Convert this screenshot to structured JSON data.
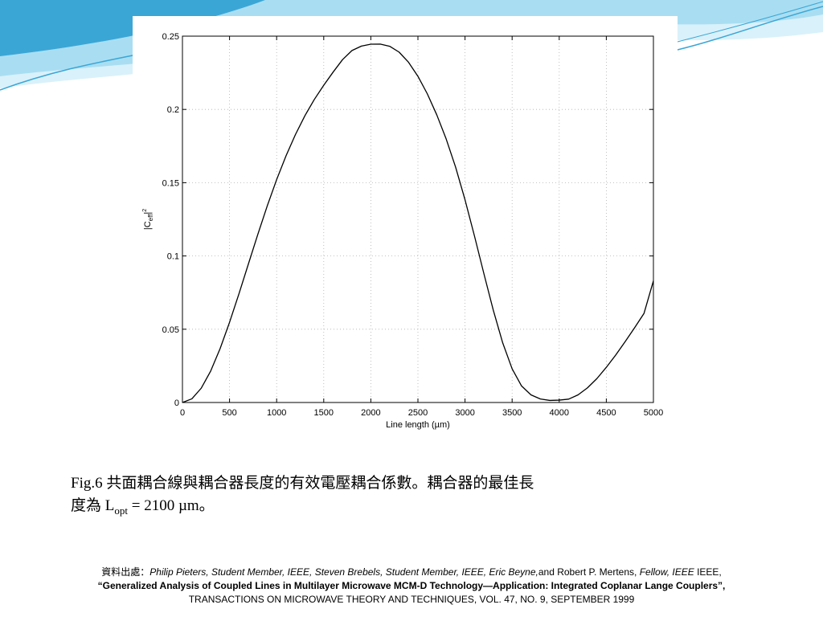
{
  "colors": {
    "accent_dark": "#3aa6d6",
    "accent_light": "#a9def2",
    "accent_pale": "#d9f1fa",
    "line": "#000000",
    "grid": "#b0b0b0"
  },
  "caption": {
    "line1": "Fig.6 共面耦合線與耦合器長度的有效電壓耦合係數。耦合器的最佳長",
    "line2_prefix": "度為 L",
    "line2_sub": "opt",
    "line2_suffix": " = 2100 µm。"
  },
  "source": {
    "label": "資料出處：",
    "authors_italic": "Philip Pieters, Student Member, IEEE, Steven Brebels, Student Member, IEEE, Eric Beyne,",
    "authors_mid": "and Robert P. Mertens, ",
    "authors_italic2": "Fellow, IEEE",
    "authors_end": " IEEE,",
    "title": "“Generalized Analysis of Coupled Lines in Multilayer Microwave MCM-D Technology—Application: Integrated Coplanar Lange Couplers”,",
    "journal": "TRANSACTIONS ON MICROWAVE THEORY AND TECHNIQUES, VOL. 47, NO. 9, SEPTEMBER 1999"
  },
  "chart_data": {
    "type": "line",
    "title": "",
    "xlabel": "Line length (µm)",
    "ylabel_main": "|C",
    "ylabel_sub": "eff",
    "ylabel_end": "|",
    "ylabel_sup": "2",
    "xlim": [
      0,
      5000
    ],
    "ylim": [
      0,
      0.25
    ],
    "xticks": [
      "0",
      "500",
      "1000",
      "1500",
      "2000",
      "2500",
      "3000",
      "3500",
      "4000",
      "4500",
      "5000"
    ],
    "yticks": [
      "0",
      "0.05",
      "0.1",
      "0.15",
      "0.2",
      "0.25"
    ],
    "grid": true,
    "series": [
      {
        "x": [
          0,
          100,
          200,
          300,
          400,
          500,
          600,
          700,
          800,
          900,
          1000,
          1100,
          1200,
          1300,
          1400,
          1500,
          1600,
          1700,
          1800,
          1900,
          2000,
          2100,
          2200,
          2300,
          2400,
          2500,
          2600,
          2700,
          2800,
          2900,
          3000,
          3100,
          3200,
          3300,
          3400,
          3500,
          3600,
          3700,
          3800,
          3900,
          4000,
          4100,
          4200,
          4300,
          4400,
          4500,
          4600,
          4700,
          4800,
          4900,
          5000
        ],
        "y": [
          0,
          0.0025,
          0.0098,
          0.0215,
          0.0368,
          0.0547,
          0.0742,
          0.0945,
          0.1147,
          0.1341,
          0.1521,
          0.1684,
          0.1829,
          0.1957,
          0.2068,
          0.2165,
          0.2255,
          0.234,
          0.2402,
          0.2432,
          0.2445,
          0.2446,
          0.2431,
          0.2391,
          0.2322,
          0.2226,
          0.2106,
          0.1963,
          0.1798,
          0.1606,
          0.1383,
          0.1137,
          0.088,
          0.063,
          0.0407,
          0.023,
          0.0113,
          0.0052,
          0.0024,
          0.0014,
          0.0016,
          0.0023,
          0.0052,
          0.01,
          0.0163,
          0.024,
          0.0324,
          0.0415,
          0.051,
          0.0608,
          0.083
        ]
      }
    ]
  }
}
